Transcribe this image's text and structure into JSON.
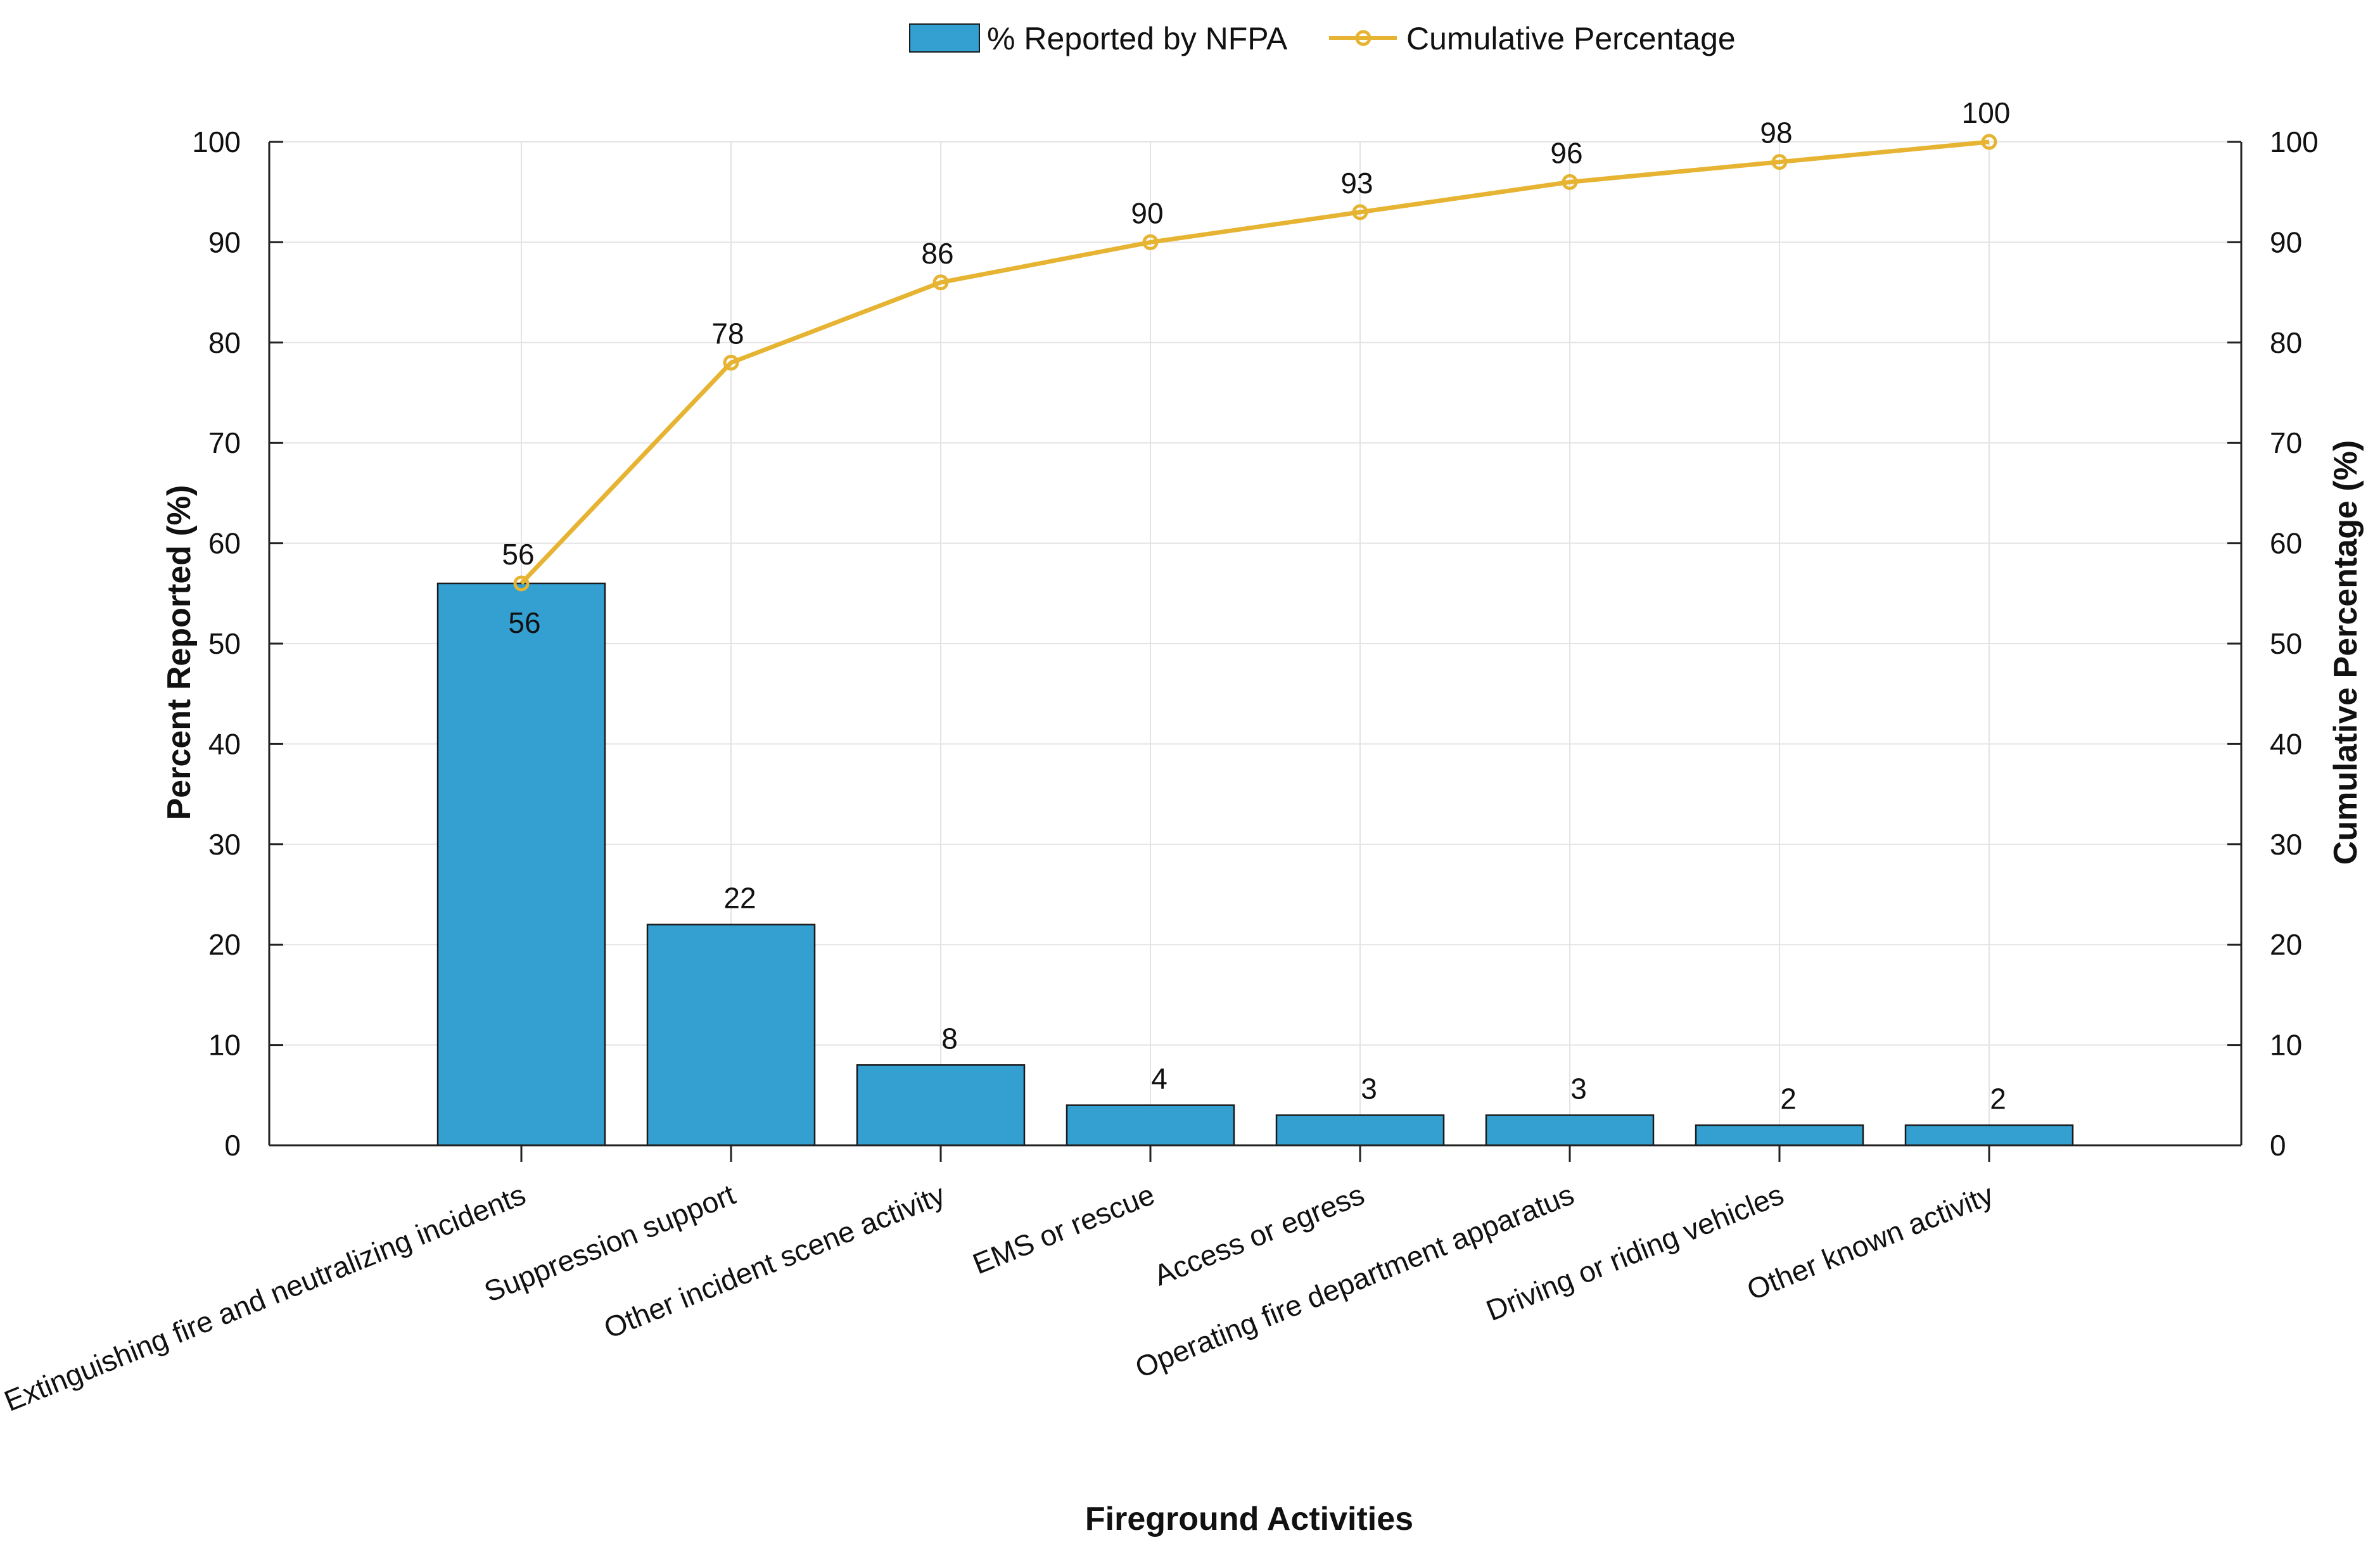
{
  "chart_data": {
    "type": "bar",
    "title": "",
    "xlabel": "Fireground Activities",
    "ylabel": "Percent Reported (%)",
    "y2label": "Cumulative Percentage (%)",
    "ylim": [
      0,
      100
    ],
    "y2lim": [
      0,
      100
    ],
    "yticks": [
      0,
      10,
      20,
      30,
      40,
      50,
      60,
      70,
      80,
      90,
      100
    ],
    "grid": true,
    "legend_position": "top-center",
    "categories": [
      "Extinguishing fire and neutralizing incidents",
      "Suppression support",
      "Other incident scene activity",
      "EMS or rescue",
      "Access or egress",
      "Operating fire department apparatus",
      "Driving or riding vehicles",
      "Other known activity"
    ],
    "series": [
      {
        "name": "% Reported by NFPA",
        "type": "bar",
        "axis": "left",
        "color": "#33a0d1",
        "values": [
          56,
          22,
          8,
          4,
          3,
          3,
          2,
          2
        ],
        "labels": [
          "56",
          "22",
          "8",
          "4",
          "3",
          "3",
          "2",
          "2"
        ]
      },
      {
        "name": "Cumulative Percentage",
        "type": "line",
        "axis": "right",
        "color": "#e6b432",
        "values": [
          56,
          78,
          86,
          90,
          93,
          96,
          98,
          100
        ],
        "labels": [
          "56",
          "78",
          "86",
          "90",
          "93",
          "96",
          "98",
          "100"
        ]
      }
    ]
  }
}
